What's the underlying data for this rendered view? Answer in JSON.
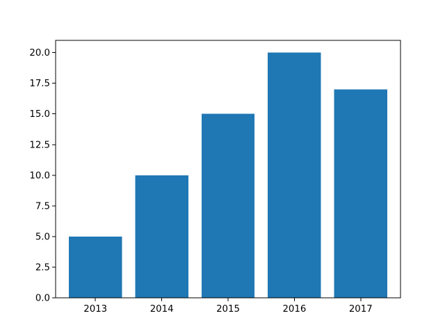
{
  "chart_data": {
    "type": "bar",
    "categories": [
      "2013",
      "2014",
      "2015",
      "2016",
      "2017"
    ],
    "values": [
      5,
      10,
      15,
      20,
      17
    ],
    "title": "",
    "xlabel": "",
    "ylabel": "",
    "ylim": [
      0,
      21
    ],
    "yticks": [
      0,
      2.5,
      5,
      7.5,
      10,
      12.5,
      15,
      17.5,
      20
    ],
    "ytick_labels": [
      "0.0",
      "2.5",
      "5.0",
      "7.5",
      "10.0",
      "12.5",
      "15.0",
      "17.5",
      "20.0"
    ],
    "grid": false,
    "legend": "none",
    "bar_color": "#1f77b4"
  }
}
